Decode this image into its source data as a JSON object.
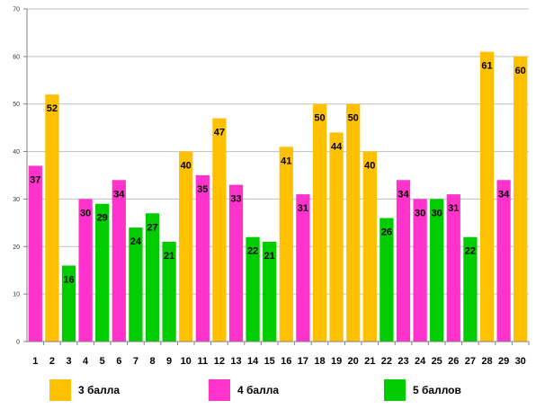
{
  "chart_data": {
    "type": "bar",
    "categories": [
      "1",
      "2",
      "3",
      "4",
      "5",
      "6",
      "7",
      "8",
      "9",
      "10",
      "11",
      "12",
      "13",
      "14",
      "15",
      "16",
      "17",
      "18",
      "19",
      "20",
      "21",
      "22",
      "23",
      "24",
      "25",
      "26",
      "27",
      "28",
      "29",
      "30"
    ],
    "values": [
      37,
      52,
      16,
      30,
      29,
      34,
      24,
      27,
      21,
      40,
      35,
      47,
      33,
      22,
      21,
      41,
      31,
      50,
      44,
      50,
      40,
      26,
      34,
      30,
      30,
      31,
      22,
      61,
      34,
      60
    ],
    "groups": [
      "4 балла",
      "3 балла",
      "5 баллов",
      "4 балла",
      "5 баллов",
      "4 балла",
      "5 баллов",
      "5 баллов",
      "5 баллов",
      "3 балла",
      "4 балла",
      "3 балла",
      "4 балла",
      "5 баллов",
      "5 баллов",
      "3 балла",
      "4 балла",
      "3 балла",
      "3 балла",
      "3 балла",
      "3 балла",
      "5 баллов",
      "4 балла",
      "4 балла",
      "5 баллов",
      "4 балла",
      "5 баллов",
      "3 балла",
      "4 балла",
      "3 балла"
    ],
    "ylim": [
      0,
      70
    ],
    "yticks": [
      "0",
      "10",
      "20",
      "30",
      "40",
      "50",
      "60",
      "70"
    ],
    "grid": true,
    "legend_position": "bottom",
    "series": [
      {
        "name": "3 балла",
        "color": "#FFC000"
      },
      {
        "name": "4 балла",
        "color": "#FF33CC"
      },
      {
        "name": "5 баллов",
        "color": "#00CC00"
      }
    ],
    "title": "",
    "xlabel": "",
    "ylabel": ""
  }
}
